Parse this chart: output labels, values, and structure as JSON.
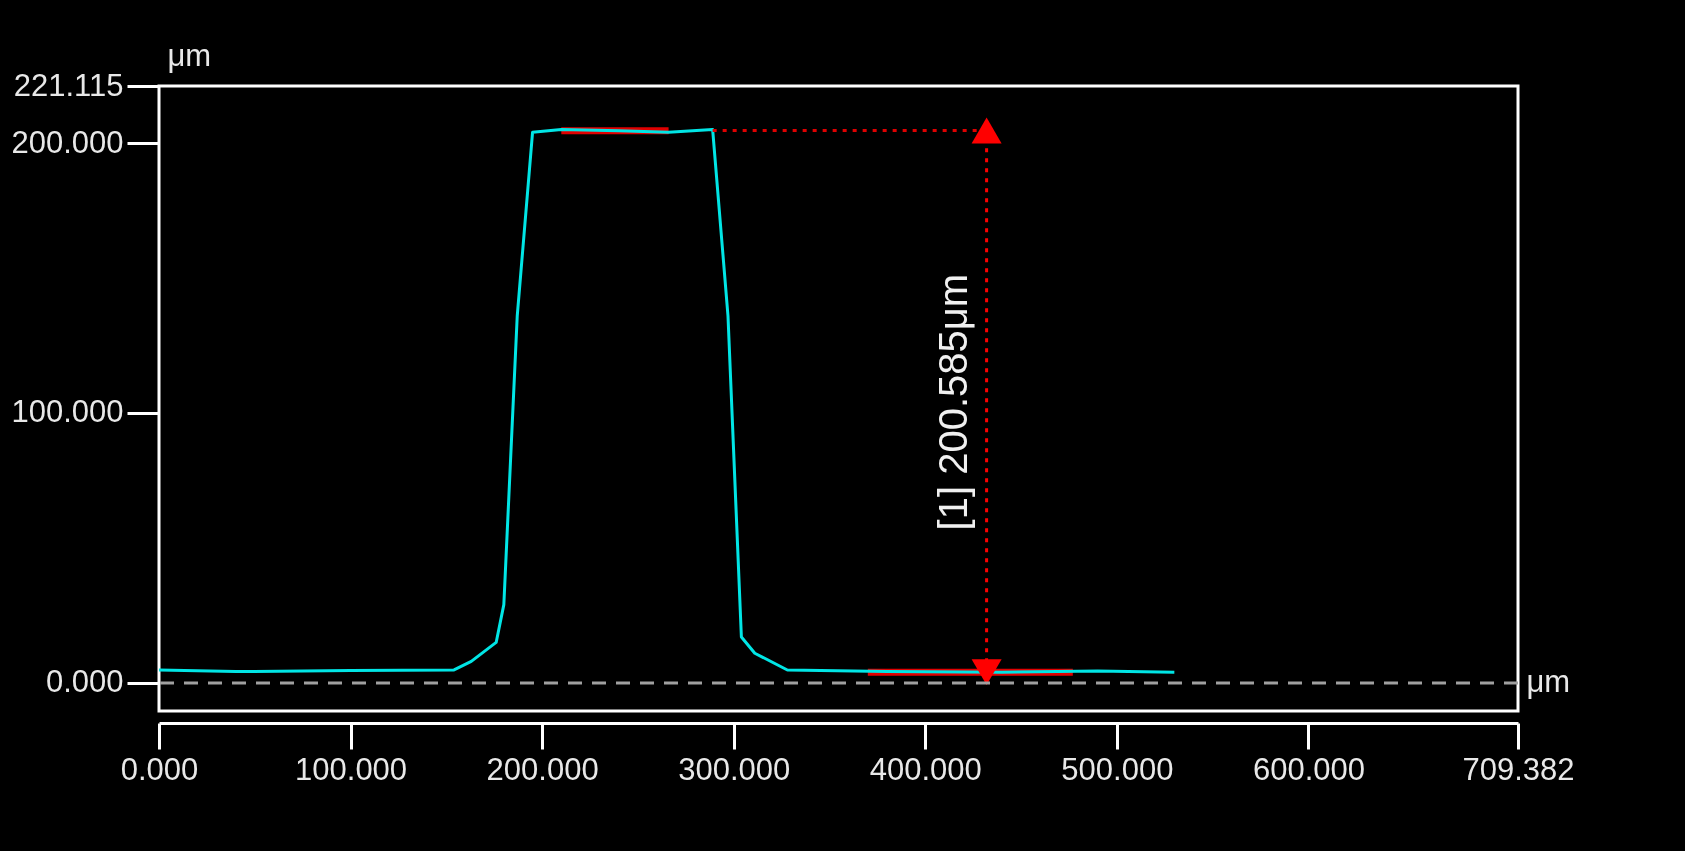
{
  "chart_data": {
    "type": "line",
    "xlabel": "μm",
    "ylabel": "μm",
    "xlim": [
      0,
      709.382
    ],
    "ylim": [
      -10.4,
      221.115
    ],
    "xticks": [
      {
        "value": 0,
        "label": "0.000"
      },
      {
        "value": 100,
        "label": "100.000"
      },
      {
        "value": 200,
        "label": "200.000"
      },
      {
        "value": 300,
        "label": "300.000"
      },
      {
        "value": 400,
        "label": "400.000"
      },
      {
        "value": 500,
        "label": "500.000"
      },
      {
        "value": 600,
        "label": "600.000"
      },
      {
        "value": 709.382,
        "label": "709.382"
      }
    ],
    "yticks": [
      {
        "value": 0,
        "label": "0.000"
      },
      {
        "value": 100,
        "label": "100.000"
      },
      {
        "value": 200,
        "label": "200.000"
      },
      {
        "value": 221.115,
        "label": "221.115"
      }
    ],
    "grid": false,
    "marker": "none",
    "ref_lines": [
      {
        "axis": "y",
        "value": 0,
        "label": null,
        "color": "#a0a0a0",
        "line_style": "dashed"
      }
    ],
    "annotations": [
      {
        "text": "[1] 200.585μm",
        "x": 432,
        "y": 104
      }
    ],
    "series": [
      {
        "color": "#e00000",
        "x": [
          210,
          266
        ],
        "values": [
          204.5,
          204.5
        ]
      },
      {
        "color": "#e00000",
        "x": [
          370,
          477
        ],
        "values": [
          4,
          4
        ]
      },
      {
        "color": "#00e5e5",
        "x": [
          0,
          40,
          100,
          154,
          163,
          176,
          180,
          187,
          195,
          210,
          240,
          266,
          289,
          297,
          304,
          311,
          328,
          380,
          440,
          490,
          530
        ],
        "values": [
          4.8,
          4.2,
          4.6,
          4.8,
          8,
          15,
          29,
          136,
          204,
          205,
          204.5,
          204,
          205,
          136,
          17,
          11,
          4.8,
          4.2,
          4,
          4.4,
          4
        ]
      },
      {
        "color": "#e00000",
        "x": [
          289,
          432
        ],
        "values": [
          204.6,
          204.6
        ],
        "line_style": "dotted"
      },
      {
        "color": "#ff0000",
        "x": [
          432,
          432
        ],
        "values": [
          4,
          204.6
        ],
        "line_style": "dotted",
        "marker": "triangle"
      }
    ]
  }
}
